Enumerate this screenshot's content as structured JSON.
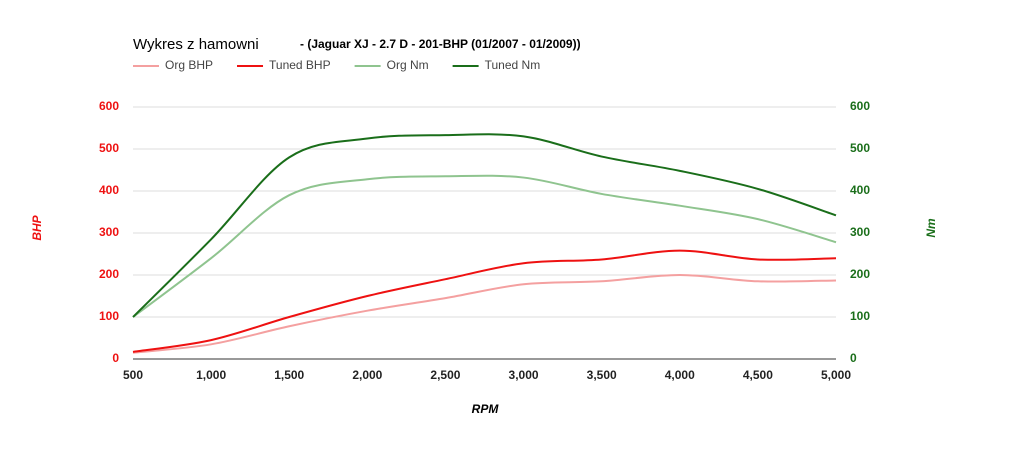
{
  "chart_data": {
    "type": "line",
    "title": "Wykres z hamowni",
    "subtitle": "- (Jaguar XJ - 2.7 D - 201-BHP (01/2007 - 01/2009))",
    "x_label": "RPM",
    "y_label": "BHP",
    "y2_label": "Nm",
    "y_label_color": "#ee1111",
    "y2_label_color": "#1a6e1a",
    "x": [
      500,
      1000,
      1500,
      2000,
      2500,
      3000,
      3500,
      4000,
      4500,
      5000
    ],
    "xlim": [
      500,
      5000
    ],
    "xticks": [
      500,
      {
        "value": 1000,
        "label": "1,000"
      },
      {
        "value": 1500,
        "label": "1,500"
      },
      {
        "value": 2000,
        "label": "2,000"
      },
      {
        "value": 2500,
        "label": "2,500"
      },
      {
        "value": 3000,
        "label": "3,000"
      },
      {
        "value": 3500,
        "label": "3,500"
      },
      {
        "value": 4000,
        "label": "4,000"
      },
      {
        "value": 4500,
        "label": "4,500"
      },
      {
        "value": 5000,
        "label": "5,000"
      }
    ],
    "ylim": [
      0,
      600
    ],
    "yticks": [
      0,
      100,
      200,
      300,
      400,
      500,
      600
    ],
    "y2lim": [
      0,
      600
    ],
    "y2ticks": [
      0,
      100,
      200,
      300,
      400,
      500,
      600
    ],
    "grid": true,
    "series": [
      {
        "name": "Org BHP",
        "color": "#f4a0a0",
        "values": [
          15,
          35,
          78,
          115,
          145,
          178,
          185,
          200,
          185,
          187
        ]
      },
      {
        "name": "Tuned BHP",
        "color": "#ee1111",
        "values": [
          17,
          45,
          100,
          150,
          190,
          228,
          237,
          258,
          237,
          240
        ]
      },
      {
        "name": "Org Nm",
        "color": "#8fc48f",
        "axis": "y2",
        "values": [
          100,
          240,
          390,
          428,
          435,
          432,
          393,
          365,
          333,
          278
        ]
      },
      {
        "name": "Tuned Nm",
        "color": "#1a6e1a",
        "axis": "y2",
        "values": [
          100,
          285,
          480,
          525,
          533,
          530,
          482,
          448,
          405,
          342
        ]
      }
    ]
  }
}
